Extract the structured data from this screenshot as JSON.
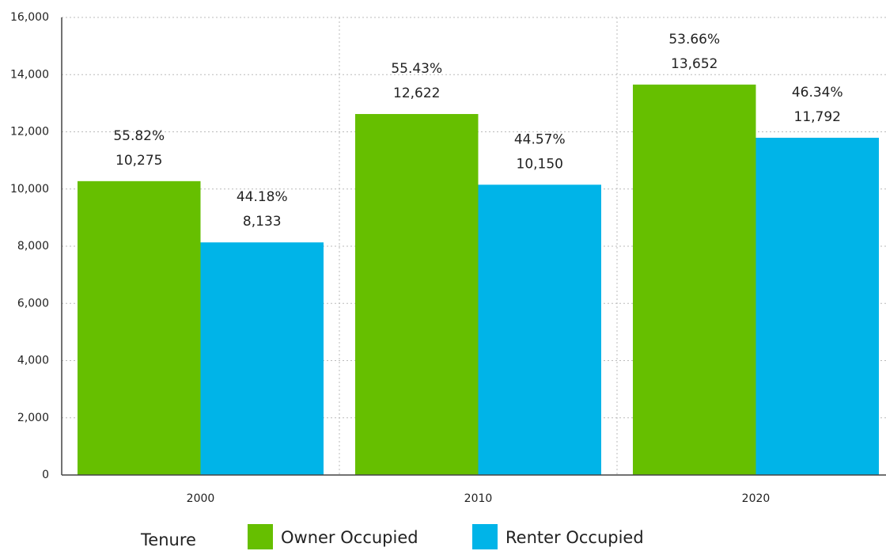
{
  "chart_data": {
    "type": "bar",
    "categories": [
      "2000",
      "2010",
      "2020"
    ],
    "series": [
      {
        "name": "Owner Occupied",
        "color": "#66bf00",
        "values": [
          10275,
          12622,
          13652
        ],
        "value_labels": [
          "10,275",
          "12,622",
          "13,652"
        ],
        "percent_labels": [
          "55.82%",
          "55.43%",
          "53.66%"
        ]
      },
      {
        "name": "Renter Occupied",
        "color": "#00b4e8",
        "values": [
          8133,
          10150,
          11792
        ],
        "value_labels": [
          "8,133",
          "10,150",
          "11,792"
        ],
        "percent_labels": [
          "44.18%",
          "44.57%",
          "46.34%"
        ]
      }
    ],
    "legend_title": "Tenure",
    "ylim": [
      0,
      16000
    ],
    "yticks": [
      0,
      {
        "value": 2000,
        "label": "2,000"
      },
      {
        "value": 4000,
        "label": "4,000"
      },
      {
        "value": 6000,
        "label": "6,000"
      },
      {
        "value": 8000,
        "label": "8,000"
      },
      {
        "value": 10000,
        "label": "10,000"
      },
      {
        "value": 12000,
        "label": "12,000"
      },
      {
        "value": 14000,
        "label": "14,000"
      },
      {
        "value": 16000,
        "label": "16,000"
      }
    ],
    "grid": true,
    "legend": "bottom"
  }
}
